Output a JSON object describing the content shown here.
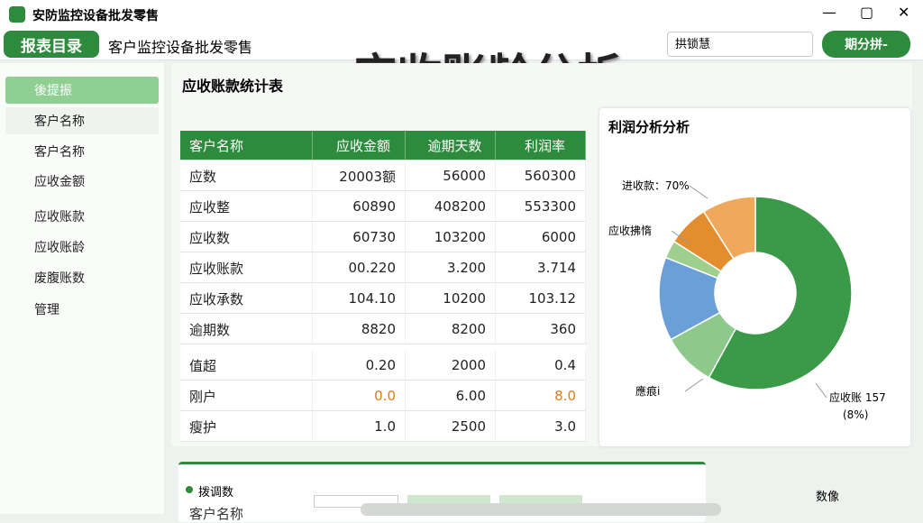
{
  "app": {
    "title": "安防监控设备批发零售"
  },
  "toolbar": {
    "menu_button": "报表目录",
    "breadcrumb": "客户监控设备批发零售",
    "page_title": "应收账龄分析",
    "search": "拱锁慧",
    "user_button": "期分拼-"
  },
  "sidebar": {
    "items": [
      "後提振",
      "客户名称",
      "客户名称",
      "应收金额",
      "应收账款",
      "应收账龄",
      "废腹账数",
      "管理"
    ]
  },
  "panel": {
    "title": "应收账款统计表"
  },
  "table": {
    "headers": [
      "客户名称",
      "应收金额",
      "逾期天数",
      "利润率"
    ],
    "rows": [
      [
        "应数",
        "20003额",
        "56000",
        "560300"
      ],
      [
        "应收整",
        "60890",
        "408200",
        "553300"
      ],
      [
        "应收数",
        "60730",
        "103200",
        "6000"
      ],
      [
        "应收账款",
        "00.220",
        "3.200",
        "3.714"
      ],
      [
        "应收承数",
        "104.10",
        "10200",
        "103.12"
      ],
      [
        "逾期数",
        "8820",
        "8200",
        "360"
      ],
      [
        "值超",
        "0.20",
        "2000",
        "0.4"
      ],
      [
        "刚户",
        "0.0",
        "6.00",
        "8.0"
      ],
      [
        "瘦护",
        "1.0",
        "2500",
        "3.0"
      ]
    ]
  },
  "chart_data": {
    "type": "donut",
    "title": "利润分析分析",
    "categories": [
      null,
      null,
      null,
      null,
      null,
      null
    ],
    "values": [
      58,
      9,
      14,
      3,
      7,
      9
    ],
    "colors": [
      "#3a9a48",
      "#8cc98a",
      "#6a9fd8",
      "#9fcf8f",
      "#e38d2f",
      "#f0a95a"
    ],
    "annotations": [
      "进收款：70%",
      "应收拂惰",
      "應痕i",
      "应收账 157",
      "(8%)"
    ]
  },
  "footer": {
    "legend": "拨调数",
    "label": "客户名称",
    "right": "数像"
  }
}
